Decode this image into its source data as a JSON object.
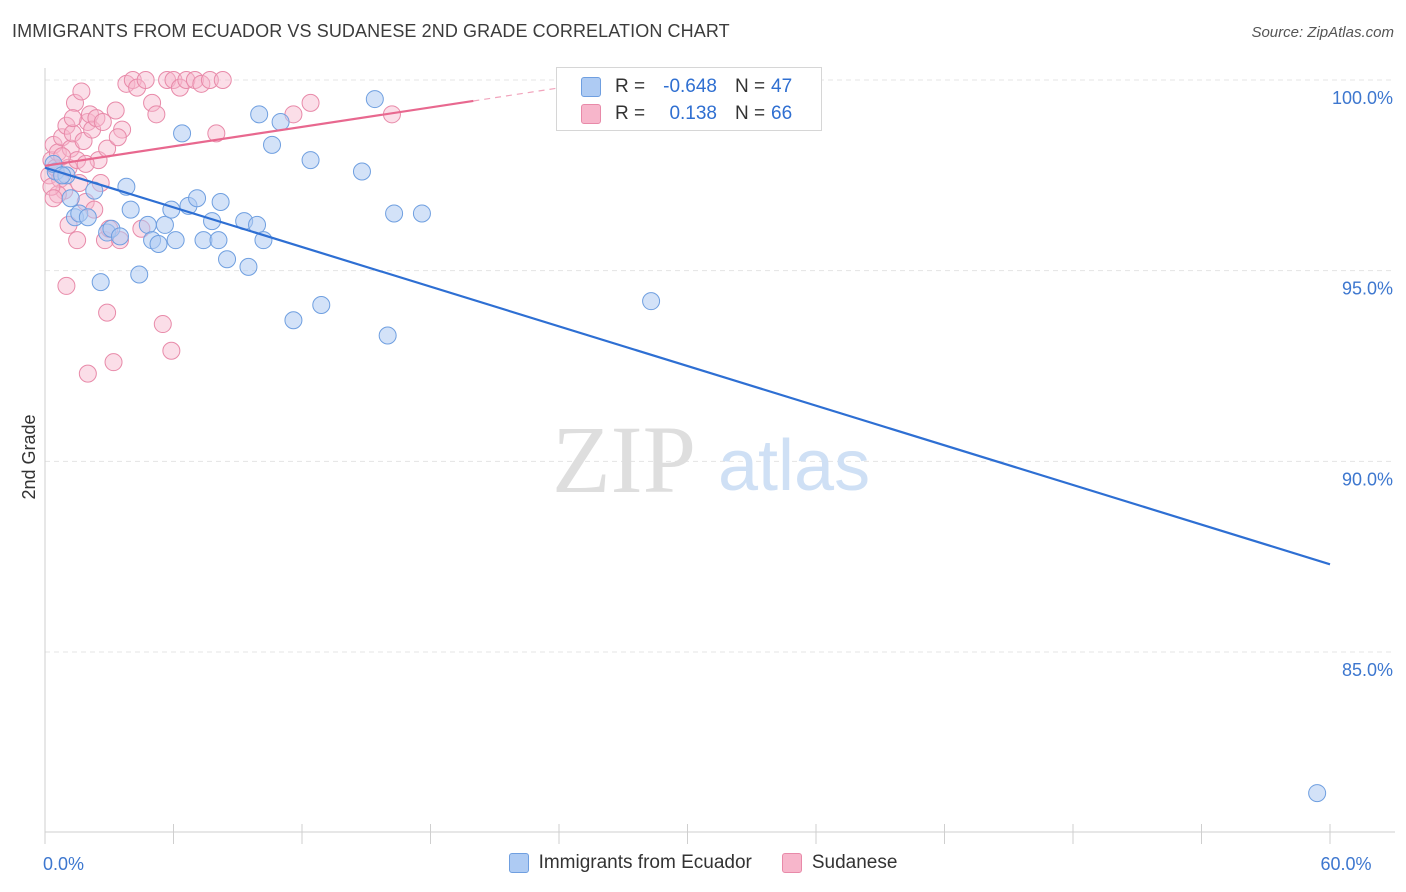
{
  "header": {
    "title": "IMMIGRANTS FROM ECUADOR VS SUDANESE 2ND GRADE CORRELATION CHART",
    "source": "Source: ZipAtlas.com"
  },
  "watermark": {
    "zip": "ZIP",
    "atlas": "atlas"
  },
  "legend": {
    "rows": [
      {
        "r_label": "R =",
        "r_value": "-0.648",
        "n_label": "N =",
        "n_value": "47"
      },
      {
        "r_label": "R =",
        "r_value": "0.138",
        "n_label": "N =",
        "n_value": "66"
      }
    ]
  },
  "bottom_legend": {
    "series1": "Immigrants from Ecuador",
    "series2": "Sudanese"
  },
  "colors": {
    "blue_fill": "#aecbf3",
    "blue_stroke": "#6f9fe0",
    "blue_line": "#2e6fd3",
    "pink_fill": "#f7b6cb",
    "pink_stroke": "#e88aa9",
    "pink_line": "#e8688f",
    "axis_text": "#3d77cf",
    "grid": "#e4e4e4"
  },
  "chart_data": {
    "type": "scatter",
    "title": "IMMIGRANTS FROM ECUADOR VS SUDANESE 2ND GRADE CORRELATION CHART",
    "xlabel": "",
    "ylabel": "2nd Grade",
    "xlim": [
      0,
      60
    ],
    "ylim": [
      80.5,
      100.7
    ],
    "x_ticks": [
      0,
      6,
      12,
      18,
      24,
      30,
      36,
      42,
      48,
      54,
      60
    ],
    "x_tick_labels": [
      {
        "value": 0,
        "label": "0.0%"
      },
      {
        "value": 60,
        "label": "60.0%"
      }
    ],
    "y_ticks": [
      {
        "value": 100,
        "label": "100.0%"
      },
      {
        "value": 95,
        "label": "95.0%"
      },
      {
        "value": 90,
        "label": "90.0%"
      },
      {
        "value": 85,
        "label": "85.0%"
      }
    ],
    "series": [
      {
        "name": "Immigrants from Ecuador",
        "color": "#aecbf3",
        "trend": {
          "x": [
            0,
            60
          ],
          "y": [
            97.7,
            87.3
          ]
        },
        "points": [
          [
            0.5,
            97.6
          ],
          [
            0.4,
            97.8
          ],
          [
            1.0,
            97.5
          ],
          [
            1.2,
            96.9
          ],
          [
            1.4,
            96.4
          ],
          [
            1.6,
            96.5
          ],
          [
            2.0,
            96.4
          ],
          [
            2.3,
            97.1
          ],
          [
            2.6,
            94.7
          ],
          [
            2.9,
            96.0
          ],
          [
            3.1,
            96.1
          ],
          [
            3.5,
            95.9
          ],
          [
            3.8,
            97.2
          ],
          [
            4.0,
            96.6
          ],
          [
            4.4,
            94.9
          ],
          [
            4.8,
            96.2
          ],
          [
            5.0,
            95.8
          ],
          [
            5.3,
            95.7
          ],
          [
            5.6,
            96.2
          ],
          [
            5.9,
            96.6
          ],
          [
            6.1,
            95.8
          ],
          [
            6.4,
            98.6
          ],
          [
            6.7,
            96.7
          ],
          [
            7.1,
            96.9
          ],
          [
            7.4,
            95.8
          ],
          [
            7.8,
            96.3
          ],
          [
            8.1,
            95.8
          ],
          [
            8.2,
            96.8
          ],
          [
            8.5,
            95.3
          ],
          [
            9.3,
            96.3
          ],
          [
            9.5,
            95.1
          ],
          [
            9.9,
            96.2
          ],
          [
            10.2,
            95.8
          ],
          [
            10.6,
            98.3
          ],
          [
            11.0,
            98.9
          ],
          [
            11.6,
            93.7
          ],
          [
            12.4,
            97.9
          ],
          [
            12.9,
            94.1
          ],
          [
            14.8,
            97.6
          ],
          [
            15.4,
            99.5
          ],
          [
            16.0,
            93.3
          ],
          [
            16.3,
            96.5
          ],
          [
            17.6,
            96.5
          ],
          [
            28.3,
            94.2
          ],
          [
            59.4,
            81.3
          ],
          [
            10.0,
            99.1
          ],
          [
            0.8,
            97.5
          ]
        ]
      },
      {
        "name": "Sudanese",
        "color": "#f7b6cb",
        "trend": {
          "x": [
            0,
            20
          ],
          "y": [
            97.75,
            99.45
          ]
        },
        "trend_dashed": {
          "x": [
            20,
            27
          ],
          "y": [
            99.45,
            100.05
          ]
        },
        "points": [
          [
            0.2,
            97.5
          ],
          [
            0.3,
            97.9
          ],
          [
            0.4,
            98.3
          ],
          [
            0.5,
            97.7
          ],
          [
            0.6,
            98.1
          ],
          [
            0.7,
            97.4
          ],
          [
            0.8,
            98.5
          ],
          [
            0.9,
            97.1
          ],
          [
            1.0,
            98.8
          ],
          [
            1.1,
            97.7
          ],
          [
            1.2,
            98.2
          ],
          [
            1.3,
            98.6
          ],
          [
            1.4,
            99.4
          ],
          [
            1.5,
            97.9
          ],
          [
            1.6,
            97.3
          ],
          [
            1.7,
            99.7
          ],
          [
            1.8,
            98.4
          ],
          [
            1.9,
            96.8
          ],
          [
            2.0,
            98.9
          ],
          [
            2.1,
            99.1
          ],
          [
            2.2,
            98.7
          ],
          [
            2.3,
            96.6
          ],
          [
            2.4,
            99.0
          ],
          [
            2.5,
            97.9
          ],
          [
            2.6,
            97.3
          ],
          [
            2.7,
            98.9
          ],
          [
            2.8,
            95.8
          ],
          [
            2.9,
            93.9
          ],
          [
            3.0,
            96.1
          ],
          [
            3.2,
            92.6
          ],
          [
            3.3,
            99.2
          ],
          [
            3.5,
            95.8
          ],
          [
            3.6,
            98.7
          ],
          [
            3.8,
            99.9
          ],
          [
            4.1,
            100.0
          ],
          [
            4.3,
            99.8
          ],
          [
            4.5,
            96.1
          ],
          [
            4.7,
            100.0
          ],
          [
            5.0,
            99.4
          ],
          [
            5.2,
            99.1
          ],
          [
            5.5,
            93.6
          ],
          [
            5.7,
            100.0
          ],
          [
            5.9,
            92.9
          ],
          [
            6.0,
            100.0
          ],
          [
            6.3,
            99.8
          ],
          [
            6.6,
            100.0
          ],
          [
            7.0,
            100.0
          ],
          [
            7.3,
            99.9
          ],
          [
            7.7,
            100.0
          ],
          [
            8.0,
            98.6
          ],
          [
            8.3,
            100.0
          ],
          [
            1.0,
            94.6
          ],
          [
            0.6,
            97.0
          ],
          [
            1.1,
            96.2
          ],
          [
            11.6,
            99.1
          ],
          [
            12.4,
            99.4
          ],
          [
            16.2,
            99.1
          ],
          [
            0.3,
            97.2
          ],
          [
            0.8,
            98.0
          ],
          [
            1.5,
            95.8
          ],
          [
            2.0,
            92.3
          ],
          [
            0.4,
            96.9
          ],
          [
            1.9,
            97.8
          ],
          [
            2.9,
            98.2
          ],
          [
            3.4,
            98.5
          ],
          [
            1.3,
            99.0
          ]
        ]
      }
    ]
  }
}
